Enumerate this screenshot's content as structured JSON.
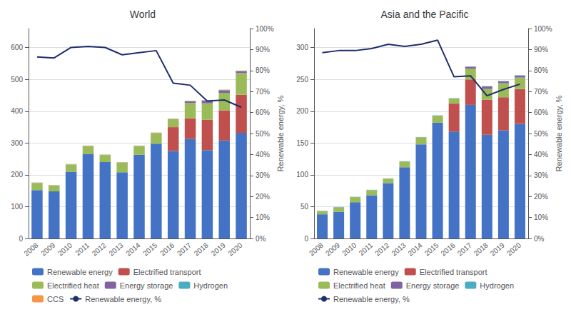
{
  "chart_data": [
    {
      "type": "bar",
      "title": "World",
      "stacked": true,
      "grid": true,
      "legend": "bottom",
      "categories": [
        "2008",
        "2009",
        "2010",
        "2011",
        "2012",
        "2013",
        "2014",
        "2015",
        "2016",
        "2017",
        "2018",
        "2019",
        "2020"
      ],
      "series": [
        {
          "name": "Renewable energy",
          "type": "bar",
          "color": "#4472C4",
          "values": [
            152,
            148,
            210,
            265,
            240,
            208,
            263,
            298,
            275,
            313,
            278,
            308,
            332
          ]
        },
        {
          "name": "Electrified transport",
          "type": "bar",
          "color": "#C0504D",
          "values": [
            0,
            0,
            0,
            0,
            0,
            0,
            0,
            0,
            75,
            65,
            95,
            95,
            120
          ]
        },
        {
          "name": "Electrified heat",
          "type": "bar",
          "color": "#9BBB59",
          "values": [
            22,
            18,
            22,
            25,
            22,
            30,
            27,
            33,
            25,
            48,
            52,
            55,
            68
          ]
        },
        {
          "name": "Energy storage",
          "type": "bar",
          "color": "#8064A2",
          "values": [
            0,
            0,
            0,
            0,
            0,
            0,
            0,
            0,
            0,
            5,
            8,
            8,
            6
          ]
        },
        {
          "name": "Hydrogen",
          "type": "bar",
          "color": "#4BACC6",
          "values": [
            1,
            1,
            1,
            1,
            1,
            1,
            1,
            1,
            1,
            1,
            1,
            1,
            1
          ]
        },
        {
          "name": "CCS",
          "type": "bar",
          "color": "#F79646",
          "values": [
            1,
            1,
            1,
            1,
            1,
            1,
            1,
            1,
            1,
            1,
            1,
            1,
            1
          ]
        },
        {
          "name": "Renewable energy, %",
          "type": "line",
          "axis": "y2",
          "color": "#1F2D6E",
          "values": [
            86.5,
            86.0,
            91.0,
            91.5,
            91.0,
            87.5,
            88.5,
            89.5,
            74.0,
            73.0,
            65.5,
            66.0,
            62.5
          ]
        }
      ],
      "ylim": [
        0,
        660
      ],
      "yticks": [
        0,
        100,
        200,
        300,
        400,
        500,
        600
      ],
      "y2label": "Renewable energy, %",
      "y2lim": [
        0,
        100
      ],
      "y2ticks": [
        {
          "value": 0,
          "label": "0%"
        },
        {
          "value": 10,
          "label": "10%"
        },
        {
          "value": 20,
          "label": "20%"
        },
        {
          "value": 30,
          "label": "30%"
        },
        {
          "value": 40,
          "label": "40%"
        },
        {
          "value": 50,
          "label": "50%"
        },
        {
          "value": 60,
          "label": "60%"
        },
        {
          "value": 70,
          "label": "70%"
        },
        {
          "value": 80,
          "label": "80%"
        },
        {
          "value": 90,
          "label": "90%"
        },
        {
          "value": 100,
          "label": "100%"
        }
      ]
    },
    {
      "type": "bar",
      "title": "Asia and the Pacific",
      "stacked": true,
      "grid": true,
      "legend": "bottom",
      "categories": [
        "2008",
        "2009",
        "2010",
        "2011",
        "2012",
        "2013",
        "2014",
        "2015",
        "2016",
        "2017",
        "2018",
        "2019",
        "2020"
      ],
      "series": [
        {
          "name": "Renewable energy",
          "type": "bar",
          "color": "#4472C4",
          "values": [
            38,
            42,
            57,
            68,
            87,
            112,
            148,
            182,
            168,
            210,
            163,
            170,
            180
          ]
        },
        {
          "name": "Electrified transport",
          "type": "bar",
          "color": "#C0504D",
          "values": [
            0,
            0,
            0,
            0,
            0,
            0,
            0,
            0,
            44,
            40,
            55,
            52,
            55
          ]
        },
        {
          "name": "Electrified heat",
          "type": "bar",
          "color": "#9BBB59",
          "values": [
            5,
            7,
            8,
            8,
            7,
            9,
            11,
            11,
            8,
            17,
            17,
            22,
            18
          ]
        },
        {
          "name": "Energy storage",
          "type": "bar",
          "color": "#8064A2",
          "values": [
            0,
            0,
            0,
            0,
            0,
            0,
            0,
            0,
            0,
            3,
            4,
            3,
            3
          ]
        },
        {
          "name": "Hydrogen",
          "type": "bar",
          "color": "#4BACC6",
          "values": [
            0.5,
            0.5,
            0.5,
            0.5,
            0.5,
            0.5,
            0.5,
            0.5,
            0.5,
            0.5,
            0.5,
            0.5,
            0.5
          ]
        },
        {
          "name": "Renewable energy, %",
          "type": "line",
          "axis": "y2",
          "color": "#1F2D6E",
          "values": [
            88.5,
            89.5,
            89.5,
            90.5,
            92.5,
            91.5,
            92.5,
            94.5,
            77.0,
            77.5,
            68.0,
            71.0,
            73.5
          ]
        }
      ],
      "ylim": [
        0,
        330
      ],
      "yticks": [
        0,
        50,
        100,
        150,
        200,
        250,
        300
      ],
      "y2label": "Renewable energy, %",
      "y2lim": [
        0,
        100
      ],
      "y2ticks": [
        {
          "value": 0,
          "label": "0%"
        },
        {
          "value": 10,
          "label": "10%"
        },
        {
          "value": 20,
          "label": "20%"
        },
        {
          "value": 30,
          "label": "30%"
        },
        {
          "value": 40,
          "label": "40%"
        },
        {
          "value": 50,
          "label": "50%"
        },
        {
          "value": 60,
          "label": "60%"
        },
        {
          "value": 70,
          "label": "70%"
        },
        {
          "value": 80,
          "label": "80%"
        },
        {
          "value": 90,
          "label": "90%"
        },
        {
          "value": 100,
          "label": "100%"
        }
      ]
    }
  ]
}
